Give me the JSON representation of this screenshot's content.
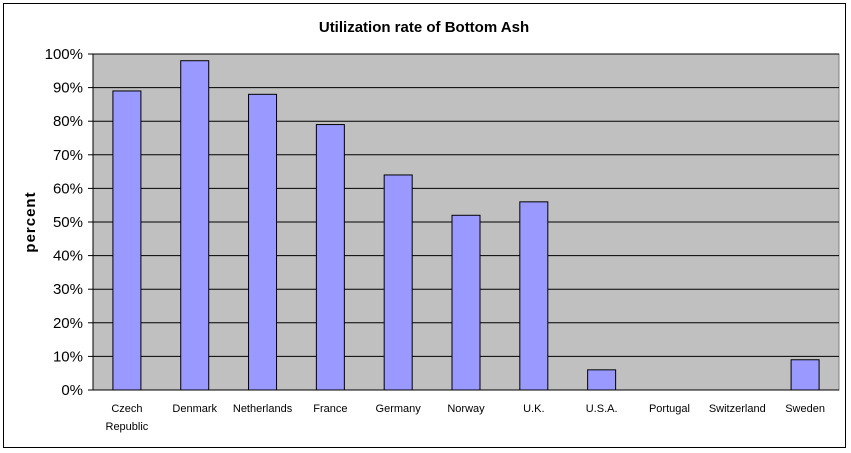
{
  "chart_data": {
    "type": "bar",
    "title": "Utilization rate of Bottom Ash",
    "xlabel": "",
    "ylabel": "percent",
    "categories": [
      [
        "Czech",
        "Republic"
      ],
      [
        "Denmark"
      ],
      [
        "Netherlands"
      ],
      [
        "France"
      ],
      [
        "Germany"
      ],
      [
        "Norway"
      ],
      [
        "U.K."
      ],
      [
        "U.S.A."
      ],
      [
        "Portugal"
      ],
      [
        "Switzerland"
      ],
      [
        "Sweden"
      ]
    ],
    "values": [
      89,
      98,
      88,
      79,
      64,
      52,
      56,
      6,
      0,
      0,
      9
    ],
    "ylim": [
      0,
      100
    ],
    "yticks": [
      "0%",
      "10%",
      "20%",
      "30%",
      "40%",
      "50%",
      "60%",
      "70%",
      "80%",
      "90%",
      "100%"
    ],
    "grid": true,
    "colors": {
      "bar_fill": "#9999ff",
      "bar_stroke": "#000000",
      "plot_background": "#c0c0c0",
      "gridline": "#000000"
    }
  }
}
